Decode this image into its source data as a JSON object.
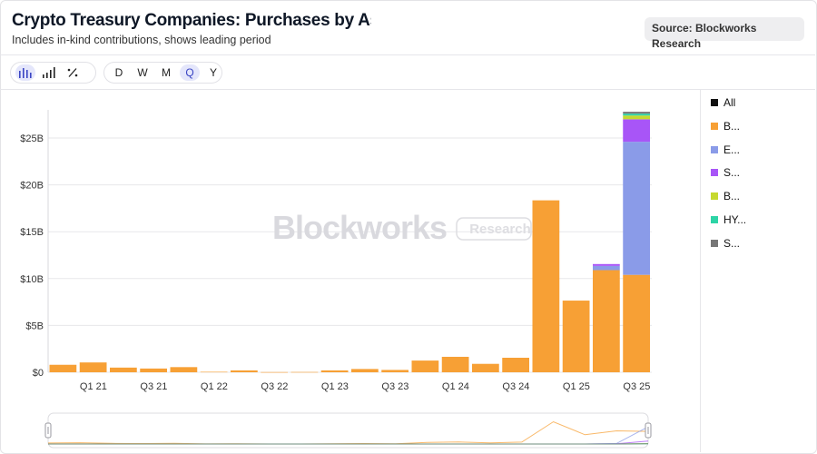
{
  "header": {
    "title": "Crypto Treasury Companies: Purchases by Asset",
    "subtitle": "Includes in-kind contributions, shows leading period",
    "source": "Source: Blockworks Research"
  },
  "toolbar": {
    "chart_modes": [
      {
        "icon": "bar-chart-icon",
        "glyph": "▐▌",
        "active": true
      },
      {
        "icon": "signal-bars-icon",
        "glyph": "▂▄▆",
        "active": false
      },
      {
        "icon": "percent-icon",
        "glyph": "∕",
        "active": false
      }
    ],
    "periods": [
      {
        "label": "D",
        "active": false
      },
      {
        "label": "W",
        "active": false
      },
      {
        "label": "M",
        "active": false
      },
      {
        "label": "Q",
        "active": true
      },
      {
        "label": "Y",
        "active": false
      }
    ]
  },
  "watermark": {
    "brand": "Blockworks",
    "tag": "Research"
  },
  "legend": [
    {
      "label": "All",
      "color": "#111111"
    },
    {
      "label": "B...",
      "color": "#f7a035"
    },
    {
      "label": "E...",
      "color": "#8a9be8"
    },
    {
      "label": "S...",
      "color": "#a855f7"
    },
    {
      "label": "B...",
      "color": "#c6d92f"
    },
    {
      "label": "HY...",
      "color": "#2dd4a6"
    },
    {
      "label": "S...",
      "color": "#777777"
    }
  ],
  "chart_data": {
    "type": "bar",
    "stacked": true,
    "y_tick_labels": [
      "$0",
      "$5B",
      "$10B",
      "$15B",
      "$20B",
      "$25B"
    ],
    "y_ticks": [
      0,
      5,
      10,
      15,
      20,
      25
    ],
    "ylim": [
      0,
      28
    ],
    "x_tick_labels": [
      "Q1 21",
      "Q3 21",
      "Q1 22",
      "Q3 22",
      "Q1 23",
      "Q3 23",
      "Q1 24",
      "Q3 24",
      "Q1 25",
      "Q3 25"
    ],
    "categories": [
      "Q4 20",
      "Q1 21",
      "Q2 21",
      "Q3 21",
      "Q4 21",
      "Q1 22",
      "Q2 22",
      "Q3 22",
      "Q4 22",
      "Q1 23",
      "Q2 23",
      "Q3 23",
      "Q4 23",
      "Q1 24",
      "Q2 24",
      "Q3 24",
      "Q4 24",
      "Q1 25",
      "Q2 25",
      "Q3 25"
    ],
    "series": [
      {
        "color": "#f7a035",
        "values": [
          0.8,
          1.05,
          0.5,
          0.4,
          0.55,
          0.05,
          0.2,
          0.02,
          0.03,
          0.2,
          0.35,
          0.25,
          1.25,
          1.65,
          0.9,
          1.55,
          18.35,
          7.65,
          10.9,
          10.4
        ]
      },
      {
        "color": "#8a9be8",
        "values": [
          0,
          0,
          0,
          0,
          0,
          0,
          0,
          0,
          0,
          0,
          0,
          0,
          0,
          0,
          0,
          0,
          0,
          0,
          0.45,
          14.2
        ]
      },
      {
        "color": "#a855f7",
        "values": [
          0,
          0,
          0,
          0,
          0,
          0,
          0,
          0,
          0,
          0,
          0,
          0,
          0,
          0,
          0,
          0,
          0,
          0,
          0.2,
          2.4
        ]
      },
      {
        "color": "#c6d92f",
        "values": [
          0,
          0,
          0,
          0,
          0,
          0,
          0,
          0,
          0,
          0,
          0,
          0,
          0,
          0,
          0,
          0,
          0,
          0,
          0,
          0.4
        ]
      },
      {
        "color": "#2dd4a6",
        "values": [
          0,
          0,
          0,
          0,
          0,
          0,
          0,
          0,
          0,
          0,
          0,
          0,
          0,
          0,
          0,
          0,
          0,
          0,
          0,
          0.2
        ]
      },
      {
        "color": "#777777",
        "values": [
          0,
          0,
          0,
          0,
          0,
          0,
          0,
          0,
          0,
          0,
          0,
          0,
          0,
          0,
          0,
          0,
          0,
          0,
          0,
          0.2
        ]
      }
    ],
    "grid": true,
    "legend_position": "right"
  }
}
